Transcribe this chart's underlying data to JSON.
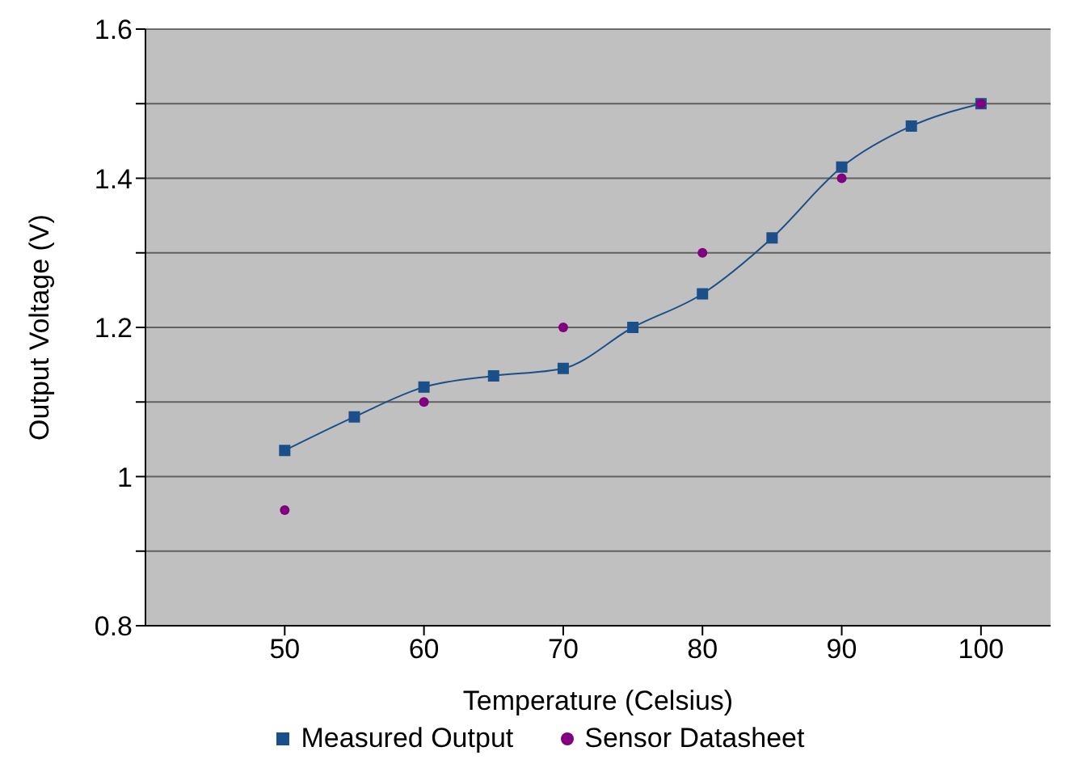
{
  "chart_data": {
    "type": "line",
    "xlabel": "Temperature (Celsius)",
    "ylabel": "Output Voltage (V)",
    "xlim": [
      40,
      105
    ],
    "xticks": [
      50,
      60,
      70,
      80,
      90,
      100
    ],
    "ylim": [
      0.8,
      1.6
    ],
    "yticks": [
      0.8,
      {
        "value": 0.9,
        "label": null
      },
      1,
      {
        "value": 1.1,
        "label": null
      },
      1.2,
      {
        "value": 1.3,
        "label": null
      },
      1.4,
      {
        "value": 1.5,
        "label": null
      },
      1.6
    ],
    "grid": "y",
    "legend": "bottom",
    "series": [
      {
        "name": "Measured Output",
        "marker": "square",
        "color": "#1a4f8a",
        "x": [
          50,
          55,
          60,
          65,
          70,
          75,
          80,
          85,
          90,
          95,
          100
        ],
        "values": [
          1.035,
          1.08,
          1.12,
          1.135,
          1.145,
          1.2,
          1.245,
          1.32,
          1.415,
          1.47,
          1.5
        ]
      },
      {
        "name": "Sensor Datasheet",
        "type": "scatter",
        "marker": "circle",
        "color": "#800080",
        "x": [
          50,
          60,
          70,
          80,
          90,
          100
        ],
        "values": [
          0.955,
          1.1,
          1.2,
          1.3,
          1.4,
          1.5
        ]
      }
    ]
  }
}
